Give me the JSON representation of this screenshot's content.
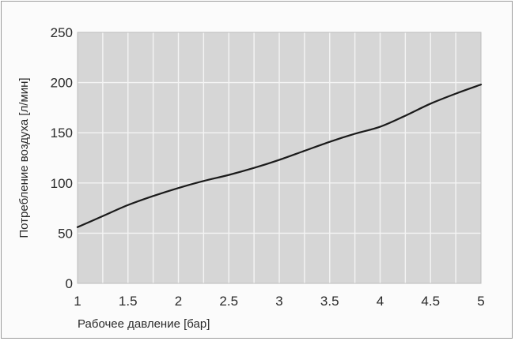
{
  "chart_data": {
    "type": "line",
    "title": "",
    "xlabel": "Рабочее давление [бар]",
    "ylabel": "Потребление воздуха [л/мин]",
    "xlim": [
      1,
      5
    ],
    "ylim": [
      0,
      250
    ],
    "x_ticks": [
      "1",
      "1.5",
      "2",
      "2.5",
      "3",
      "3.5",
      "4",
      "4.5",
      "5"
    ],
    "y_ticks": [
      "0",
      "50",
      "100",
      "150",
      "200",
      "250"
    ],
    "grid": true,
    "legend": "none",
    "colors": {
      "plot_background": "#d6d6d6",
      "grid": "#f4f4f4",
      "line": "#1a1a1a"
    },
    "series": [
      {
        "x": [
          1.0,
          1.25,
          1.5,
          1.75,
          2.0,
          2.25,
          2.5,
          2.75,
          3.0,
          3.25,
          3.5,
          3.75,
          4.0,
          4.25,
          4.5,
          4.75,
          5.0
        ],
        "values": [
          56,
          67,
          78,
          87,
          95,
          102,
          108,
          115,
          123,
          132,
          141,
          149,
          156,
          167,
          179,
          189,
          198
        ]
      }
    ]
  }
}
